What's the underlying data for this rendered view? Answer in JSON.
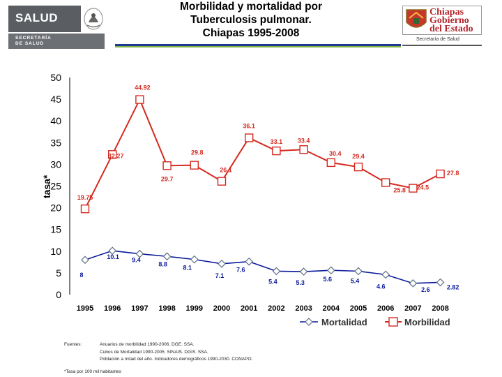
{
  "header": {
    "title_lines": [
      "Morbilidad y mortalidad por",
      "Tuberculosis pulmonar.",
      "Chiapas 1995-2008"
    ],
    "left_logo": {
      "name": "SALUD",
      "sub_lines": [
        "SECRETARÍA",
        "DE SALUD"
      ]
    },
    "right_logo": {
      "name_lines": [
        "Chiapas",
        "Gobierno",
        "del Estado"
      ],
      "sub": "Secretaría de Salud"
    }
  },
  "colors": {
    "mortalidad": "#0b1a9a",
    "morbilidad": "#d42a1f",
    "mort_marker": "#5f6f86"
  },
  "chart_data": {
    "type": "line",
    "title": "Morbilidad y mortalidad por Tuberculosis pulmonar. Chiapas 1995-2008",
    "xlabel": "",
    "ylabel": "tasa*",
    "ylim": [
      0,
      50
    ],
    "yticks": [
      "0",
      "5",
      "10",
      "15",
      "20",
      "25",
      "30",
      "35",
      "40",
      "45",
      "50"
    ],
    "categories": [
      "1995",
      "1996",
      "1997",
      "1998",
      "1999",
      "2000",
      "2001",
      "2002",
      "2003",
      "2004",
      "2005",
      "2006",
      "2007",
      "2008"
    ],
    "series": [
      {
        "name": "Mortalidad",
        "values": [
          8,
          10.1,
          9.4,
          8.8,
          8.1,
          7.1,
          7.6,
          5.4,
          5.3,
          5.6,
          5.4,
          4.6,
          2.6,
          2.82
        ],
        "labels": [
          "8",
          "10.1",
          "9.4",
          "8.8",
          "8.1",
          "7.1",
          "7.6",
          "5.4",
          "5.3",
          "5.6",
          "5.4",
          "4.6",
          "2.6",
          "2.82"
        ]
      },
      {
        "name": "Morbilidad",
        "values": [
          19.75,
          32.27,
          44.92,
          29.7,
          29.8,
          26.1,
          36.1,
          33.1,
          33.4,
          30.4,
          29.4,
          25.8,
          24.5,
          27.8
        ],
        "labels": [
          "19.75",
          "32.27",
          "44.92",
          "29.7",
          "29.8",
          "26.1",
          "36.1",
          "33.1",
          "33.4",
          "30.4",
          "29.4",
          "25.8",
          "24.5",
          "27.8"
        ]
      }
    ],
    "legend": {
      "entries": [
        "Mortalidad",
        "Morbilidad"
      ],
      "position": "bottom-right"
    },
    "grid": false
  },
  "footer": {
    "fuentes_label": "Fuentes:",
    "sources": [
      "Anuarios de morbilidad 1990-2006. DGE. SSA.",
      "Cubos de Mortalidad 1990-2005. SINAIS. DGIS. SSA.",
      "Población a mitad del año. Indicadores demográficos 1990-2030. CONAPO."
    ],
    "note": "*Tasa por 100 mil habitantes"
  }
}
